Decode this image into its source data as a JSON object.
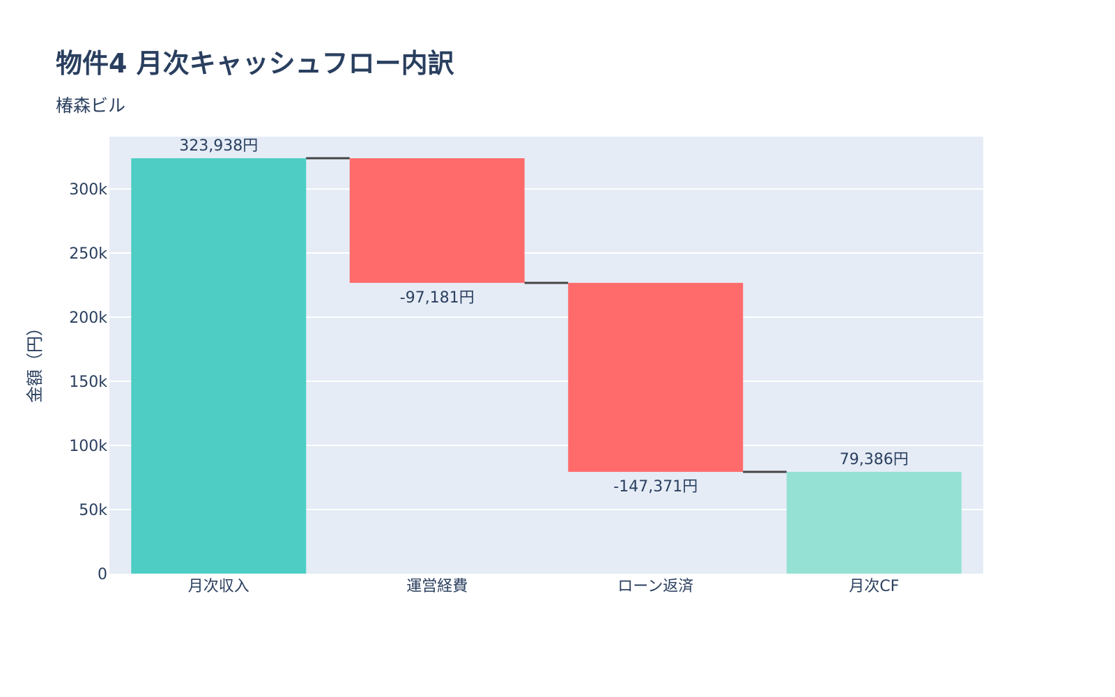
{
  "chart_data": {
    "type": "waterfall",
    "title": "物件4 月次キャッシュフロー内訳",
    "subtitle": "椿森ビル",
    "xlabel": "",
    "ylabel": "金額（円）",
    "ylim": [
      0,
      340800
    ],
    "yticks": [
      0,
      50000,
      100000,
      150000,
      200000,
      250000,
      300000
    ],
    "ytick_labels": [
      "0",
      "50k",
      "100k",
      "150k",
      "200k",
      "250k",
      "300k"
    ],
    "grid": true,
    "categories": [
      "月次収入",
      "運営経費",
      "ローン返済",
      "月次CF"
    ],
    "measures": [
      "absolute",
      "relative",
      "relative",
      "total"
    ],
    "values": [
      323938,
      -97181,
      -147371,
      79386
    ],
    "data_labels": [
      "323,938円",
      "-97,181円",
      "-147,371円",
      "79,386円"
    ],
    "colors": {
      "increasing": "#4ECDC4",
      "decreasing": "#FF6B6B",
      "totals": "#95E1D3",
      "connector": "#444444",
      "plot_bg": "#E5ECF6",
      "grid": "#FFFFFF"
    }
  }
}
